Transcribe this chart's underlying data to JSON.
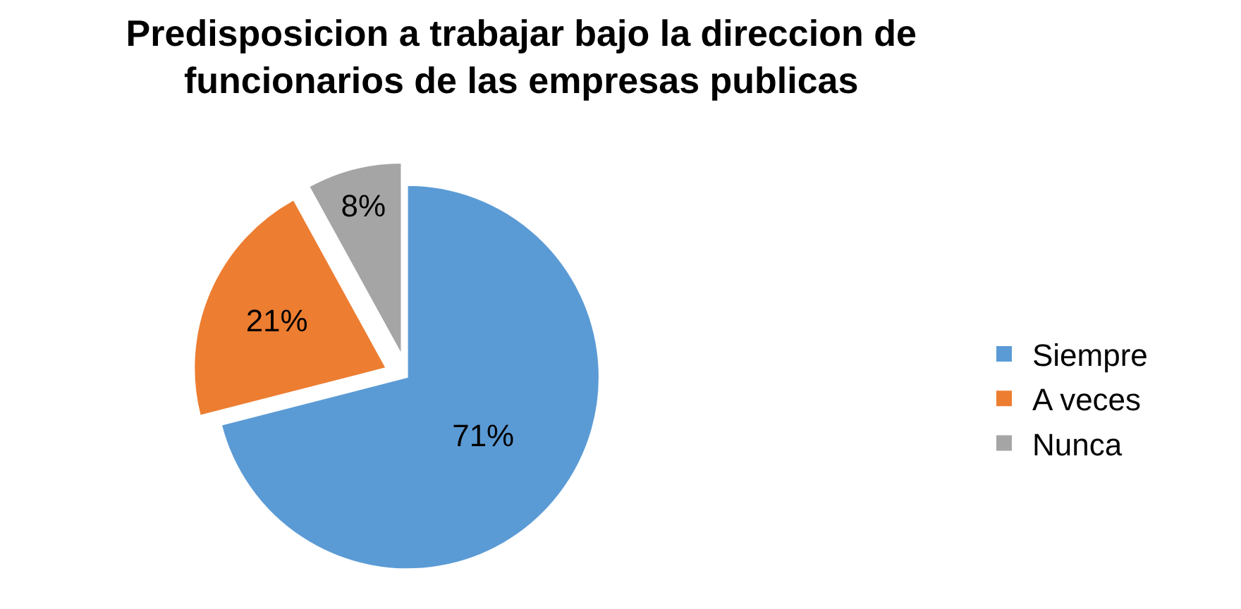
{
  "chart_data": {
    "type": "pie",
    "title": "Predisposicion a trabajar bajo la direccion de\nfuncionarios de las empresas publicas",
    "categories": [
      "Siempre",
      "A veces",
      "Nunca"
    ],
    "values": [
      71,
      21,
      8
    ],
    "value_labels": [
      "71%",
      "21%",
      "8%"
    ],
    "colors": [
      "#5b9bd5",
      "#ed7d31",
      "#a5a5a5"
    ],
    "legend": "right"
  }
}
